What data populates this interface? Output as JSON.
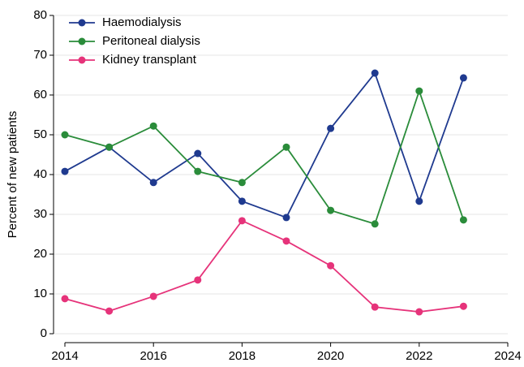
{
  "chart_data": {
    "type": "line",
    "y_label": "Percent of new patients",
    "x": [
      2014,
      2015,
      2016,
      2017,
      2018,
      2019,
      2020,
      2021,
      2022,
      2023
    ],
    "series": [
      {
        "name": "Haemodialysis",
        "color": "#1f3a8f",
        "values": [
          40.8,
          46.9,
          38.0,
          45.3,
          33.3,
          29.2,
          51.6,
          65.5,
          33.3,
          64.3
        ]
      },
      {
        "name": "Peritoneal dialysis",
        "color": "#2a8c3a",
        "values": [
          50.0,
          46.9,
          52.2,
          40.8,
          38.0,
          46.9,
          31.0,
          27.6,
          61.0,
          28.6
        ]
      },
      {
        "name": "Kidney transplant",
        "color": "#e6337a",
        "values": [
          8.8,
          5.7,
          9.4,
          13.5,
          28.4,
          23.3,
          17.1,
          6.7,
          5.5,
          6.9
        ]
      }
    ],
    "xlim": [
      2014,
      2024
    ],
    "xticks": [
      2014,
      2016,
      2018,
      2020,
      2022,
      2024
    ],
    "ylim": [
      0,
      80
    ],
    "yticks": [
      0,
      10,
      20,
      30,
      40,
      50,
      60,
      70,
      80
    ],
    "grid": true,
    "legend": "top-left"
  }
}
